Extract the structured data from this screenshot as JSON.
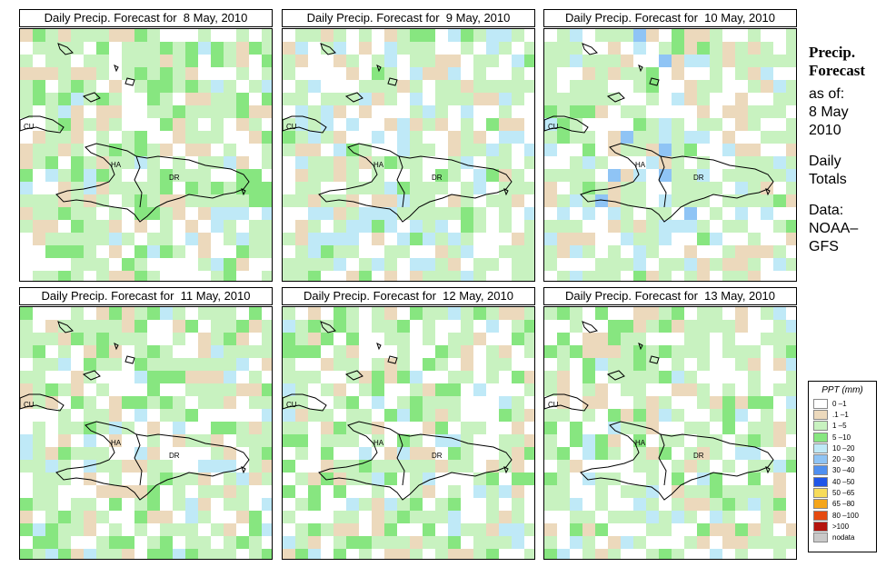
{
  "panels": [
    {
      "title": "Daily Precip. Forecast for  8 May, 2010"
    },
    {
      "title": "Daily Precip. Forecast for  9 May, 2010"
    },
    {
      "title": "Daily Precip. Forecast for  10 May, 2010"
    },
    {
      "title": "Daily Precip. Forecast for  11 May, 2010"
    },
    {
      "title": "Daily Precip. Forecast for  12 May, 2010"
    },
    {
      "title": "Daily Precip. Forecast for  13 May, 2010"
    }
  ],
  "map_labels": {
    "cuba": "CU",
    "haiti": "HA",
    "dominican_republic": "DR"
  },
  "sidebar": {
    "heading1": "Precip.",
    "heading2": "Forecast",
    "asof": "as of:",
    "date1": "8 May",
    "date2": "2010",
    "daily1": "Daily",
    "daily2": "Totals",
    "data1": "Data:",
    "data2": "NOAA–",
    "data3": "GFS"
  },
  "legend": {
    "title": "PPT (mm)",
    "items": [
      {
        "label": "0 –1",
        "color": "#ffffff"
      },
      {
        "label": ".1 –1",
        "color": "#ecd9bc"
      },
      {
        "label": "1 –5",
        "color": "#c8f2c0"
      },
      {
        "label": "5 –10",
        "color": "#87e680"
      },
      {
        "label": "10 –20",
        "color": "#bfe9f7"
      },
      {
        "label": "20 –30",
        "color": "#8fc4f5"
      },
      {
        "label": "30 –40",
        "color": "#4f8ff0"
      },
      {
        "label": "40 –50",
        "color": "#1f56e8"
      },
      {
        "label": "50 –65",
        "color": "#f7dc5a"
      },
      {
        "label": "65 –80",
        "color": "#f5a51a"
      },
      {
        "label": "80 –100",
        "color": "#e54a10"
      },
      {
        "label": ">100",
        "color": "#b4140e"
      },
      {
        "label": "nodata",
        "color": "#c9c9c9"
      }
    ]
  }
}
